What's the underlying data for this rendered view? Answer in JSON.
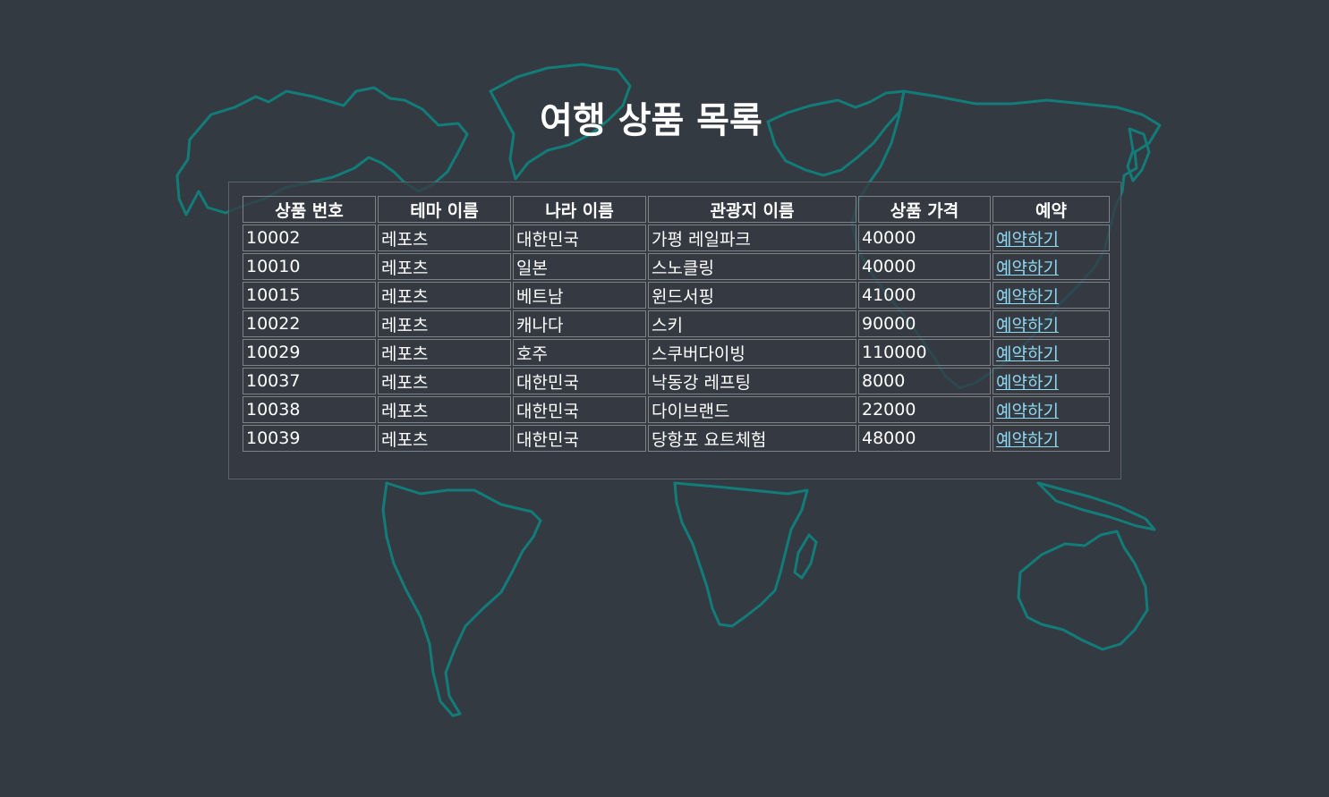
{
  "page": {
    "title": "여행 상품 목록"
  },
  "colors": {
    "background": "#343a42",
    "map_outline": "#127c79",
    "link": "#8fd8ee",
    "text": "#ffffff"
  },
  "table": {
    "headers": [
      "상품 번호",
      "테마 이름",
      "나라 이름",
      "관광지 이름",
      "상품 가격",
      "예약"
    ],
    "rows": [
      {
        "id": "10002",
        "theme": "레포츠",
        "country": "대한민국",
        "spot": "가평 레일파크",
        "price": "40000",
        "action": "예약하기"
      },
      {
        "id": "10010",
        "theme": "레포츠",
        "country": "일본",
        "spot": "스노클링",
        "price": "40000",
        "action": "예약하기"
      },
      {
        "id": "10015",
        "theme": "레포츠",
        "country": "베트남",
        "spot": "윈드서핑",
        "price": "41000",
        "action": "예약하기"
      },
      {
        "id": "10022",
        "theme": "레포츠",
        "country": "캐나다",
        "spot": "스키",
        "price": "90000",
        "action": "예약하기"
      },
      {
        "id": "10029",
        "theme": "레포츠",
        "country": "호주",
        "spot": "스쿠버다이빙",
        "price": "110000",
        "action": "예약하기"
      },
      {
        "id": "10037",
        "theme": "레포츠",
        "country": "대한민국",
        "spot": "낙동강 레프팅",
        "price": "8000",
        "action": "예약하기"
      },
      {
        "id": "10038",
        "theme": "레포츠",
        "country": "대한민국",
        "spot": "다이브랜드",
        "price": "22000",
        "action": "예약하기"
      },
      {
        "id": "10039",
        "theme": "레포츠",
        "country": "대한민국",
        "spot": "당항포 요트체험",
        "price": "48000",
        "action": "예약하기"
      }
    ]
  }
}
